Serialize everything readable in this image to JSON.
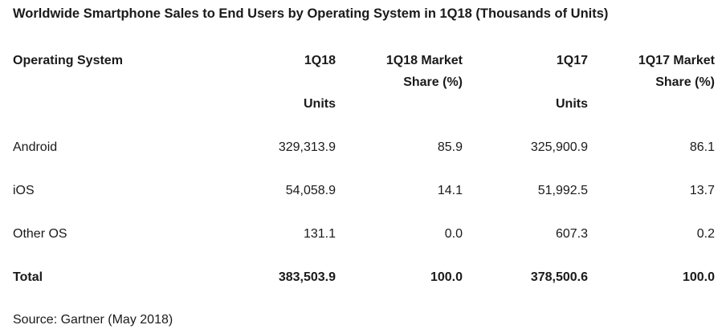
{
  "title": "Worldwide Smartphone Sales to End Users by Operating System in 1Q18 (Thousands of Units)",
  "headers": {
    "os": "Operating System",
    "q18_units_1": "1Q18",
    "q18_units_2": "Units",
    "q18_share_1": "1Q18 Market",
    "q18_share_2": "Share (%)",
    "q17_units_1": "1Q17",
    "q17_units_2": "Units",
    "q17_share_1": "1Q17 Market",
    "q17_share_2": "Share (%)"
  },
  "rows": [
    {
      "os": "Android",
      "q18_units": "329,313.9",
      "q18_share": "85.9",
      "q17_units": "325,900.9",
      "q17_share": "86.1"
    },
    {
      "os": "iOS",
      "q18_units": "54,058.9",
      "q18_share": "14.1",
      "q17_units": "51,992.5",
      "q17_share": "13.7"
    },
    {
      "os": "Other OS",
      "q18_units": "131.1",
      "q18_share": "0.0",
      "q17_units": "607.3",
      "q17_share": "0.2"
    },
    {
      "os": "Total",
      "q18_units": "383,503.9",
      "q18_share": "100.0",
      "q17_units": "378,500.6",
      "q17_share": "100.0"
    }
  ],
  "source": "Source: Gartner (May 2018)",
  "chart_data": {
    "type": "table",
    "title": "Worldwide Smartphone Sales to End Users by Operating System in 1Q18 (Thousands of Units)",
    "columns": [
      "Operating System",
      "1Q18 Units",
      "1Q18 Market Share (%)",
      "1Q17 Units",
      "1Q17 Market Share (%)"
    ],
    "rows": [
      [
        "Android",
        329313.9,
        85.9,
        325900.9,
        86.1
      ],
      [
        "iOS",
        54058.9,
        14.1,
        51992.5,
        13.7
      ],
      [
        "Other OS",
        131.1,
        0.0,
        607.3,
        0.2
      ],
      [
        "Total",
        383503.9,
        100.0,
        378500.6,
        100.0
      ]
    ]
  }
}
